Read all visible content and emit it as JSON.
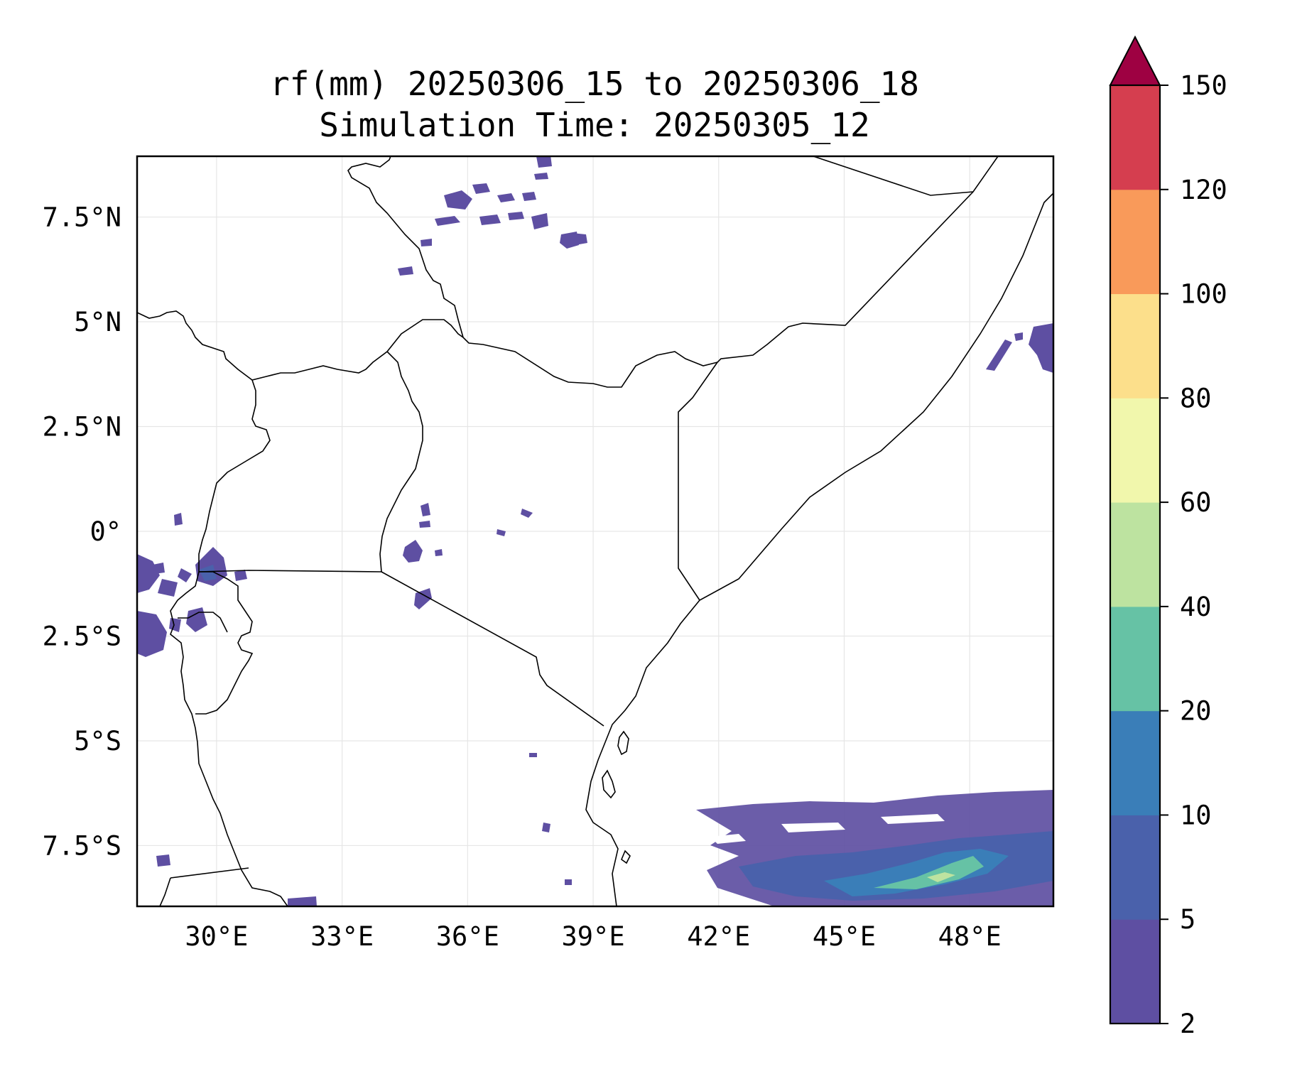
{
  "figure": {
    "title_line1": "rf(mm) 20250306_15 to 20250306_18",
    "title_line2": "Simulation Time: 20250305_12"
  },
  "map": {
    "lon_range": [
      28.1,
      50.0
    ],
    "lat_range": [
      -8.95,
      8.95
    ],
    "gridlines": true,
    "x_ticks": [
      {
        "value": 30,
        "label": "30°E"
      },
      {
        "value": 33,
        "label": "33°E"
      },
      {
        "value": 36,
        "label": "36°E"
      },
      {
        "value": 39,
        "label": "39°E"
      },
      {
        "value": 42,
        "label": "42°E"
      },
      {
        "value": 45,
        "label": "45°E"
      },
      {
        "value": 48,
        "label": "48°E"
      }
    ],
    "y_ticks": [
      {
        "value": 7.5,
        "label": "7.5°N"
      },
      {
        "value": 5,
        "label": "5°N"
      },
      {
        "value": 2.5,
        "label": "2.5°N"
      },
      {
        "value": 0,
        "label": "0°"
      },
      {
        "value": -2.5,
        "label": "2.5°S"
      },
      {
        "value": -5,
        "label": "5°S"
      },
      {
        "value": -7.5,
        "label": "7.5°S"
      }
    ]
  },
  "colorbar": {
    "levels": [
      "2",
      "5",
      "10",
      "20",
      "40",
      "60",
      "80",
      "100",
      "120",
      "150"
    ],
    "colors": [
      "#5e4fa2",
      "#4a61ab",
      "#3a7eb8",
      "#66c2a5",
      "#bde3a0",
      "#f1f7ac",
      "#fcdf8b",
      "#f99a5a",
      "#d53e4f"
    ],
    "extend_color": "#9e0142",
    "extend": "max"
  }
}
